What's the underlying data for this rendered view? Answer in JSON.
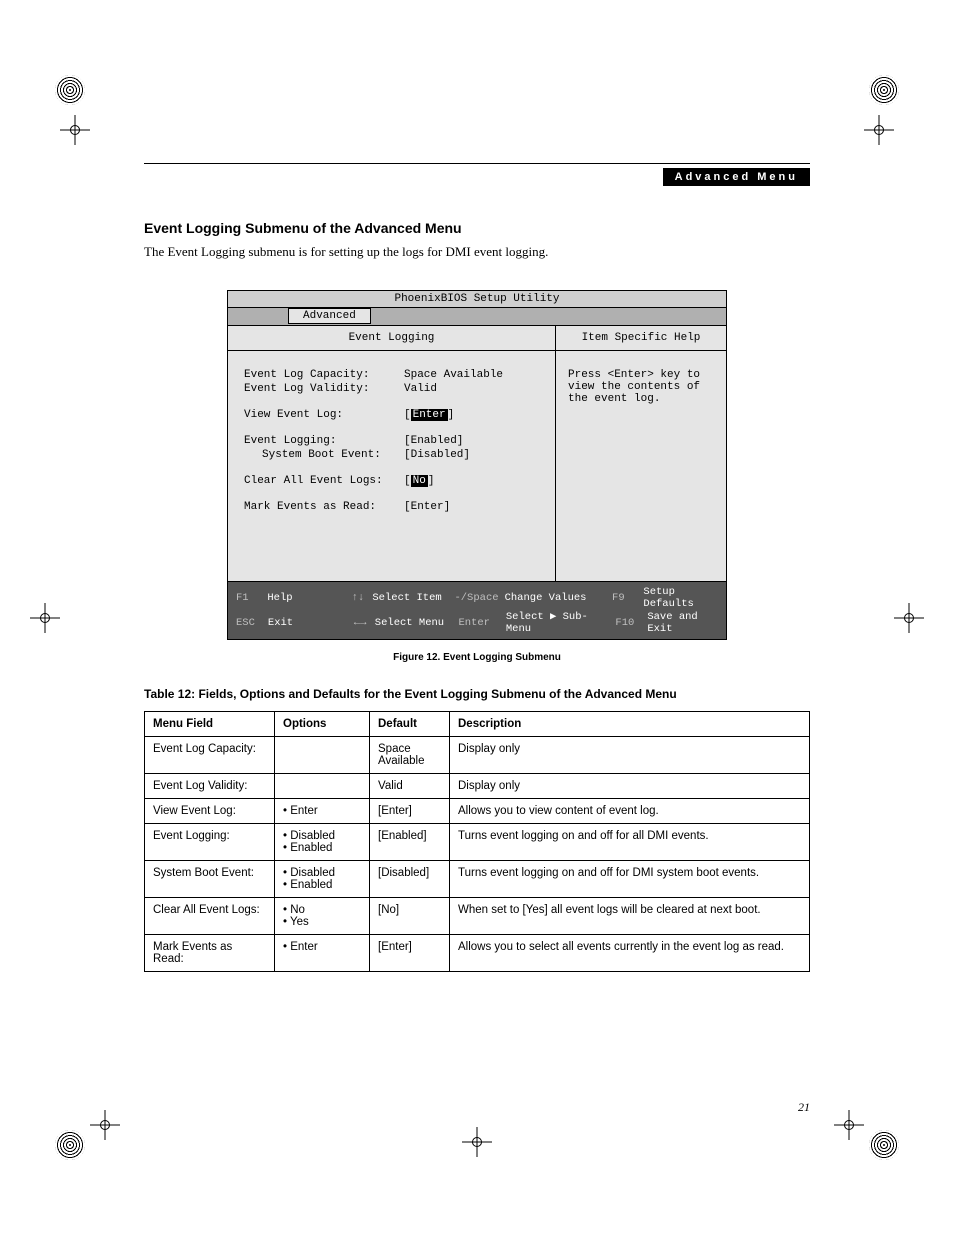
{
  "header": {
    "bar": "Advanced Menu"
  },
  "section": {
    "title": "Event Logging Submenu of the Advanced Menu",
    "desc": "The Event Logging submenu is for setting up the logs for DMI event logging."
  },
  "bios": {
    "title": "PhoenixBIOS Setup Utility",
    "tab": "Advanced",
    "left_hdr": "Event Logging",
    "right_hdr": "Item Specific Help",
    "help": "Press <Enter> key to view the contents of the event log.",
    "rows": {
      "capacity_l": "Event Log Capacity:",
      "capacity_v": "Space Available",
      "validity_l": "Event Log Validity:",
      "validity_v": "Valid",
      "view_l": "View Event Log:",
      "view_v_open": "[",
      "view_v_mid": "Enter",
      "view_v_close": "]",
      "logging_l": "Event Logging:",
      "logging_v": "[Enabled]",
      "boot_l": "System Boot Event:",
      "boot_v": "[Disabled]",
      "clear_l": "Clear All Event Logs:",
      "clear_v_open": "[",
      "clear_v_mid": "No",
      "clear_v_close": "]",
      "mark_l": "Mark Events as Read:",
      "mark_v": "[Enter]"
    },
    "footer": {
      "f1": "F1",
      "help": "Help",
      "arr_ud": "↑↓",
      "sel_item": "Select Item",
      "minus": "-/Space",
      "chg": "Change Values",
      "f9": "F9",
      "defaults": "Setup Defaults",
      "esc": "ESC",
      "exit": "Exit",
      "arr_lr": "←→",
      "sel_menu": "Select Menu",
      "enter": "Enter",
      "sub": "Select ▶ Sub-Menu",
      "f10": "F10",
      "save": "Save and Exit"
    }
  },
  "figure_caption": "Figure 12.  Event Logging Submenu",
  "table": {
    "title": "Table 12: Fields, Options and Defaults for the Event Logging Submenu of the Advanced Menu",
    "cols": {
      "c1": "Menu Field",
      "c2": "Options",
      "c3": "Default",
      "c4": "Description"
    },
    "rows": [
      {
        "field": "Event Log Capacity:",
        "opts": [],
        "def": "Space Available",
        "desc": "Display only"
      },
      {
        "field": "Event Log Validity:",
        "opts": [],
        "def": "Valid",
        "desc": "Display only"
      },
      {
        "field": "View Event Log:",
        "opts": [
          "Enter"
        ],
        "def": "[Enter]",
        "desc": "Allows you to view content of event log."
      },
      {
        "field": "Event Logging:",
        "opts": [
          "Disabled",
          "Enabled"
        ],
        "def": "[Enabled]",
        "desc": "Turns event logging on and off for all DMI events."
      },
      {
        "field": "System Boot Event:",
        "opts": [
          "Disabled",
          "Enabled"
        ],
        "def": "[Disabled]",
        "desc": "Turns event logging on and off for DMI system boot events."
      },
      {
        "field": "Clear All Event Logs:",
        "opts": [
          "No",
          "Yes"
        ],
        "def": "[No]",
        "desc": "When set to [Yes] all event logs will be cleared at next boot."
      },
      {
        "field": "Mark Events as Read:",
        "opts": [
          "Enter"
        ],
        "def": "[Enter]",
        "desc": "Allows you to select all events currently in the event log as read."
      }
    ]
  },
  "page_number": "21"
}
